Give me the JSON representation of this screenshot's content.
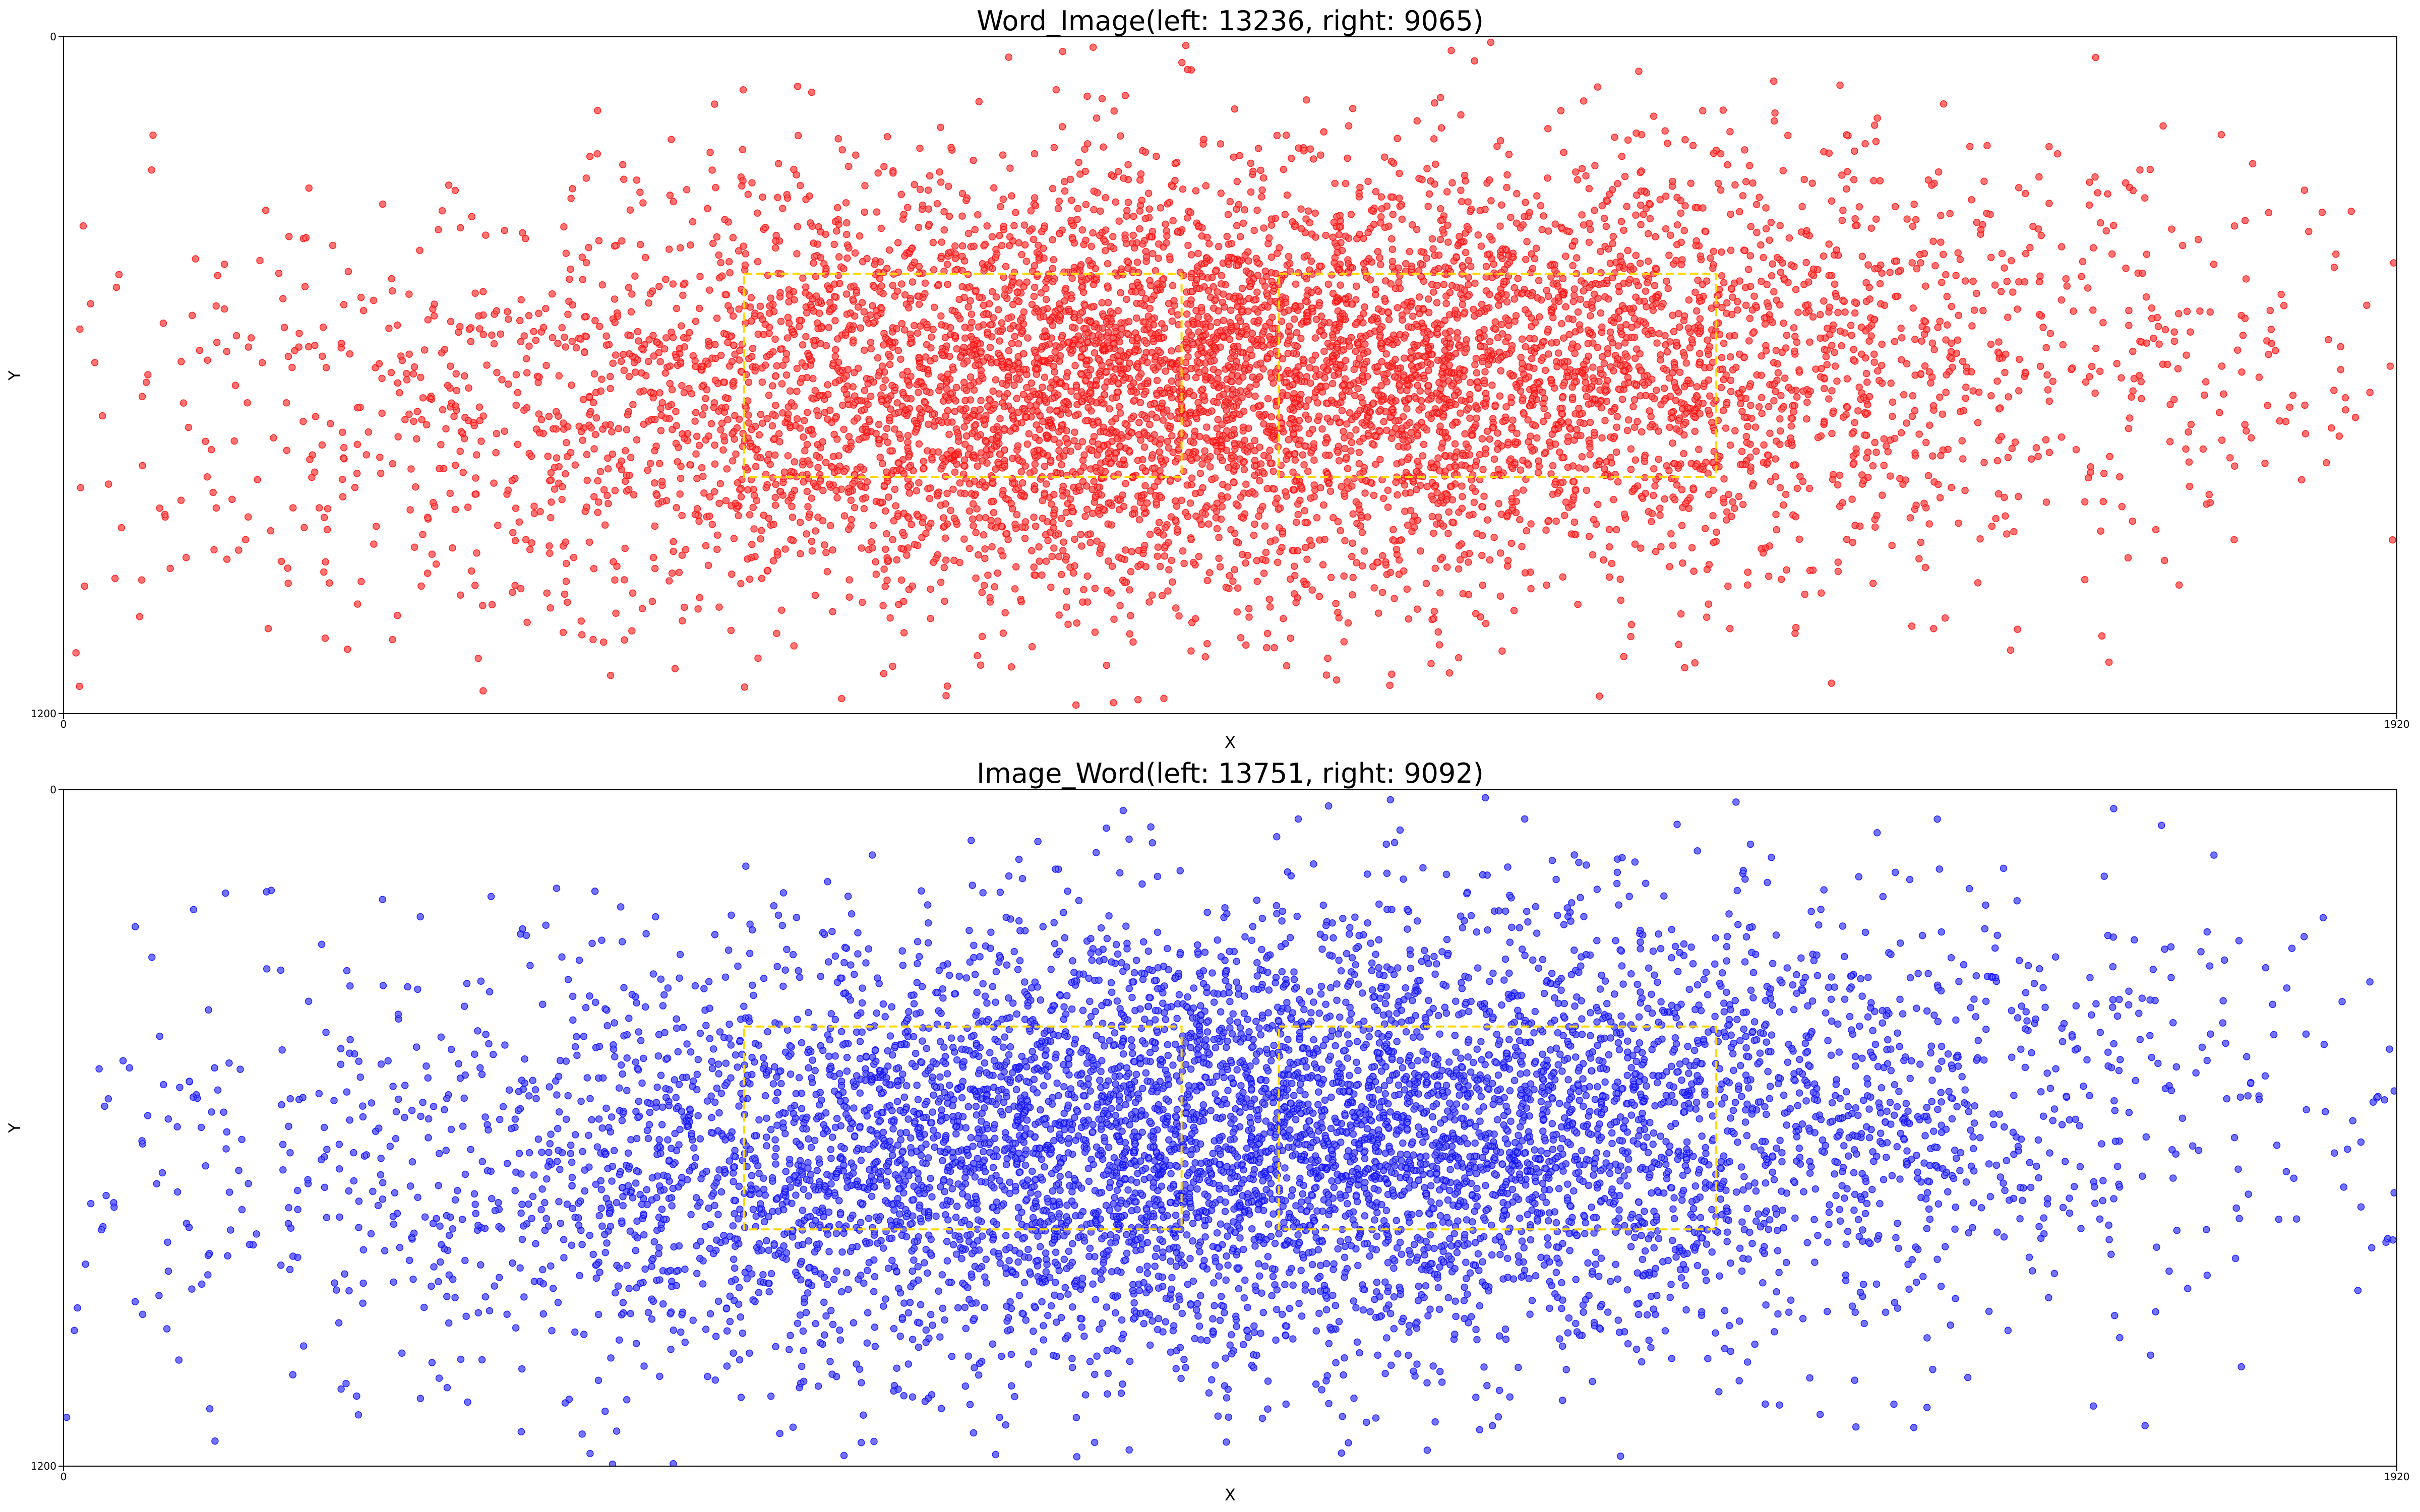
{
  "chart_data": [
    {
      "type": "scatter",
      "title": "Word_Image(left: 13236, right: 9065)",
      "xlabel": "X",
      "ylabel": "Y",
      "xlim": [
        0,
        1920
      ],
      "ylim": [
        0,
        1200
      ],
      "y_inverted": true,
      "x_ticks": [
        "0",
        "1920"
      ],
      "y_ticks": [
        "0",
        "1200"
      ],
      "grid": false,
      "point_color": "#ff0000",
      "point_alpha": 0.55,
      "series": [
        {
          "counts": {
            "left": 13236,
            "right": 9065
          }
        }
      ],
      "distribution": {
        "center_x": 960,
        "center_y": 610,
        "spread_x": 330,
        "spread_y": 190
      },
      "regions": [
        {
          "x0": 560,
          "x1": 920,
          "y0": 420,
          "y1": 780,
          "color": "#ffd700",
          "style": "dashed"
        },
        {
          "x0": 1000,
          "x1": 1360,
          "y0": 420,
          "y1": 780,
          "color": "#ffd700",
          "style": "dashed"
        }
      ]
    },
    {
      "type": "scatter",
      "title": "Image_Word(left: 13751, right: 9092)",
      "xlabel": "X",
      "ylabel": "Y",
      "xlim": [
        0,
        1920
      ],
      "ylim": [
        0,
        1200
      ],
      "y_inverted": true,
      "x_ticks": [
        "0",
        "1920"
      ],
      "y_ticks": [
        "0",
        "1200"
      ],
      "grid": false,
      "point_color": "#0000ff",
      "point_alpha": 0.55,
      "series": [
        {
          "counts": {
            "left": 13751,
            "right": 9092
          }
        }
      ],
      "distribution": {
        "center_x": 960,
        "center_y": 620,
        "spread_x": 330,
        "spread_y": 195
      },
      "regions": [
        {
          "x0": 560,
          "x1": 920,
          "y0": 420,
          "y1": 780,
          "color": "#ffd700",
          "style": "dashed"
        },
        {
          "x0": 1000,
          "x1": 1360,
          "y0": 420,
          "y1": 780,
          "color": "#ffd700",
          "style": "dashed"
        }
      ]
    }
  ]
}
